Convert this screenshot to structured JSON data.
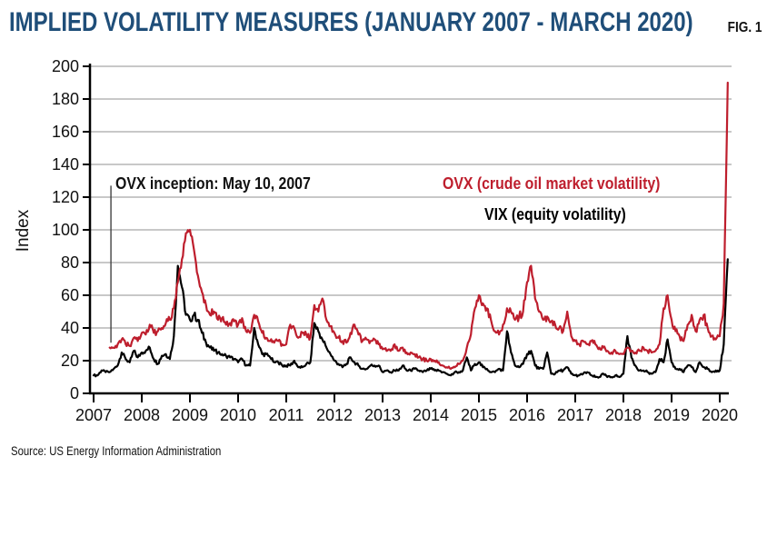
{
  "header": {
    "title": "IMPLIED VOLATILITY MEASURES (JANUARY 2007 - MARCH 2020)",
    "fig_label": "FIG. 1"
  },
  "source": "Source: US Energy Information Administration",
  "colors": {
    "title_blue": "#1F4E79",
    "ovx_red": "#BE1E2D",
    "vix_black": "#000000",
    "grid_gray": "#A6A6A6",
    "axis_black": "#000000"
  },
  "chart_data": {
    "type": "line",
    "title": "IMPLIED VOLATILITY MEASURES (JANUARY 2007 - MARCH 2020)",
    "xlabel": "",
    "ylabel": "Index",
    "ylim": [
      0,
      200
    ],
    "y_ticks": [
      0,
      20,
      40,
      60,
      80,
      100,
      120,
      140,
      160,
      180,
      200
    ],
    "x_ticks": [
      2007,
      2008,
      2009,
      2010,
      2011,
      2012,
      2013,
      2014,
      2015,
      2016,
      2017,
      2018,
      2019,
      2020
    ],
    "grid": "horizontal",
    "legend_position": "inside-top-right",
    "x_start": 2007.0,
    "x_step": 0.0833333,
    "annotation": {
      "text": "OVX inception: May 10, 2007",
      "x": 2007.36,
      "y_from": 31,
      "y_to": 127
    },
    "legend": [
      {
        "label": "OVX (crude oil market volatility)",
        "color": "#BE1E2D"
      },
      {
        "label": "VIX (equity volatility)",
        "color": "#000000"
      }
    ],
    "series": [
      {
        "name": "VIX",
        "label": "VIX (equity volatility)",
        "color": "#000000",
        "values": [
          11,
          11,
          14,
          13,
          13,
          15,
          17,
          25,
          21,
          19,
          26,
          22,
          25,
          26,
          28,
          21,
          18,
          23,
          24,
          21,
          35,
          78,
          65,
          48,
          45,
          48,
          45,
          37,
          31,
          28,
          26,
          25,
          24,
          23,
          22,
          21,
          19,
          21,
          17,
          17,
          40,
          30,
          24,
          24,
          22,
          19,
          19,
          17,
          17,
          17,
          20,
          16,
          16,
          18,
          19,
          43,
          38,
          33,
          28,
          24,
          20,
          18,
          16,
          18,
          22,
          19,
          17,
          15,
          15,
          17,
          17,
          17,
          13,
          14,
          13,
          14,
          14,
          17,
          14,
          14,
          15,
          14,
          13,
          14,
          15,
          14,
          14,
          13,
          12,
          11,
          13,
          13,
          14,
          22,
          14,
          18,
          19,
          16,
          15,
          13,
          13,
          15,
          14,
          38,
          25,
          17,
          16,
          18,
          24,
          26,
          17,
          15,
          15,
          25,
          12,
          12,
          14,
          14,
          16,
          12,
          11,
          11,
          12,
          13,
          11,
          10,
          10,
          12,
          10,
          10,
          11,
          10,
          12,
          35,
          22,
          17,
          14,
          14,
          13,
          12,
          13,
          21,
          19,
          33,
          19,
          15,
          15,
          13,
          17,
          16,
          13,
          19,
          16,
          15,
          13,
          14,
          14,
          30,
          82
        ]
      },
      {
        "name": "OVX",
        "label": "OVX (crude oil market volatility)",
        "color": "#BE1E2D",
        "values": [
          null,
          null,
          null,
          null,
          28,
          28,
          30,
          33,
          30,
          29,
          34,
          32,
          37,
          36,
          42,
          37,
          38,
          40,
          43,
          45,
          52,
          68,
          82,
          98,
          100,
          88,
          72,
          62,
          54,
          48,
          50,
          45,
          46,
          42,
          43,
          44,
          42,
          46,
          38,
          37,
          48,
          44,
          37,
          34,
          32,
          31,
          32,
          30,
          30,
          42,
          40,
          34,
          37,
          36,
          34,
          54,
          50,
          58,
          45,
          41,
          37,
          34,
          32,
          31,
          37,
          42,
          36,
          32,
          33,
          32,
          33,
          30,
          27,
          26,
          26,
          30,
          26,
          28,
          25,
          25,
          24,
          22,
          21,
          20,
          21,
          20,
          19,
          17,
          16,
          15,
          16,
          18,
          20,
          28,
          36,
          52,
          60,
          55,
          52,
          45,
          38,
          36,
          42,
          52,
          50,
          45,
          47,
          50,
          68,
          78,
          58,
          50,
          45,
          47,
          44,
          42,
          40,
          38,
          50,
          35,
          32,
          30,
          32,
          30,
          32,
          30,
          28,
          28,
          26,
          25,
          26,
          24,
          24,
          28,
          26,
          25,
          26,
          28,
          26,
          25,
          26,
          30,
          52,
          60,
          45,
          38,
          35,
          32,
          42,
          48,
          38,
          45,
          48,
          40,
          35,
          33,
          35,
          55,
          190
        ]
      }
    ]
  }
}
